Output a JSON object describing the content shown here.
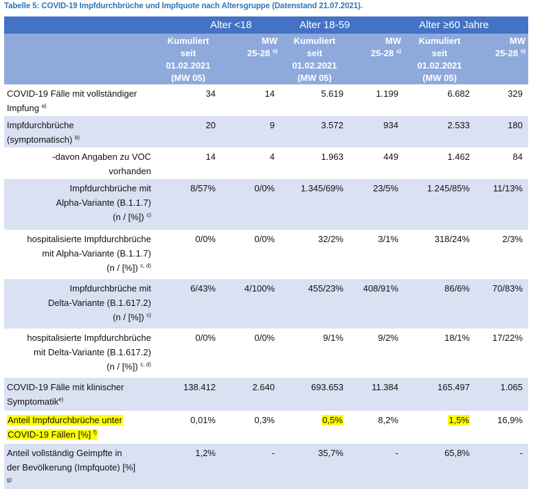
{
  "caption": "Tabelle 5: COVID-19 Impfdurchbrüche und Impfquote nach Altersgruppe (Datenstand 21.07.2021).",
  "header": {
    "groups": [
      "Alter <18",
      "Alter 18-59",
      "Alter ≥60 Jahre"
    ],
    "kum_lines": [
      "Kumuliert",
      "seit",
      "01.02.2021",
      "(MW 05)"
    ],
    "mw_lines": [
      "MW",
      "25-28"
    ],
    "mw_sup": "a)"
  },
  "rows": [
    {
      "lines": [
        "COVID-19 Fälle mit vollständiger",
        "Impfung"
      ],
      "sup": "a)",
      "cells": [
        "34",
        "14",
        "5.619",
        "1.199",
        "6.682",
        "329"
      ]
    },
    {
      "lines": [
        "Impfdurchbrüche",
        "(symptomatisch)"
      ],
      "sup": "b)",
      "cells": [
        "20",
        "9",
        "3.572",
        "934",
        "2.533",
        "180"
      ]
    },
    {
      "lines": [
        "-davon Angaben zu VOC",
        "vorhanden"
      ],
      "sup": "",
      "cells": [
        "14",
        "4",
        "1.963",
        "449",
        "1.462",
        "84"
      ]
    },
    {
      "lines": [
        "Impfdurchbrüche mit",
        "Alpha-Variante (B.1.1.7)",
        "(n / [%])"
      ],
      "sup": "c)",
      "cells": [
        "8/57%",
        "0/0%",
        "1.345/69%",
        "23/5%",
        "1.245/85%",
        "11/13%"
      ]
    },
    {
      "lines": [
        "hospitalisierte Impfdurchbrüche",
        "mit Alpha-Variante (B.1.1.7)",
        "(n / [%])"
      ],
      "sup": "c, d)",
      "cells": [
        "0/0%",
        "0/0%",
        "32/2%",
        "3/1%",
        "318/24%",
        "2/3%"
      ]
    },
    {
      "lines": [
        "Impfdurchbrüche mit",
        "Delta-Variante (B.1.617.2)",
        "(n / [%])"
      ],
      "sup": "c)",
      "cells": [
        "6/43%",
        "4/100%",
        "455/23%",
        "408/91%",
        "86/6%",
        "70/83%"
      ]
    },
    {
      "lines": [
        "hospitalisierte Impfdurchbrüche",
        "mit Delta-Variante (B.1.617.2)",
        "(n / [%])"
      ],
      "sup": "c, d)",
      "cells": [
        "0/0%",
        "0/0%",
        "9/1%",
        "9/2%",
        "18/1%",
        "17/22%"
      ]
    },
    {
      "lines": [
        "COVID-19 Fälle mit klinischer",
        "Symptomatik"
      ],
      "sup": "e)",
      "cells": [
        "138.412",
        "2.640",
        "693.653",
        "11.384",
        "165.497",
        "1.065"
      ]
    },
    {
      "lines": [
        "Anteil Impfdurchbrüche unter",
        "COVID-19 Fällen [%]"
      ],
      "sup": "f)",
      "cells": [
        "0,01%",
        "0,3%",
        "0,5%",
        "8,2%",
        "1,5%",
        "16,9%"
      ]
    },
    {
      "lines": [
        "Anteil vollständig Geimpfte in",
        "der Bevölkerung (Impfquote) [%]"
      ],
      "sup": "g)",
      "cells": [
        "1,2%",
        "-",
        "35,7%",
        "-",
        "65,8%",
        "-"
      ]
    }
  ],
  "colors": {
    "header_dark": "#4472c4",
    "header_light": "#8ea9db",
    "row_shade": "#d9e1f2",
    "highlight": "#ffff00",
    "caption": "#2e75b6"
  }
}
